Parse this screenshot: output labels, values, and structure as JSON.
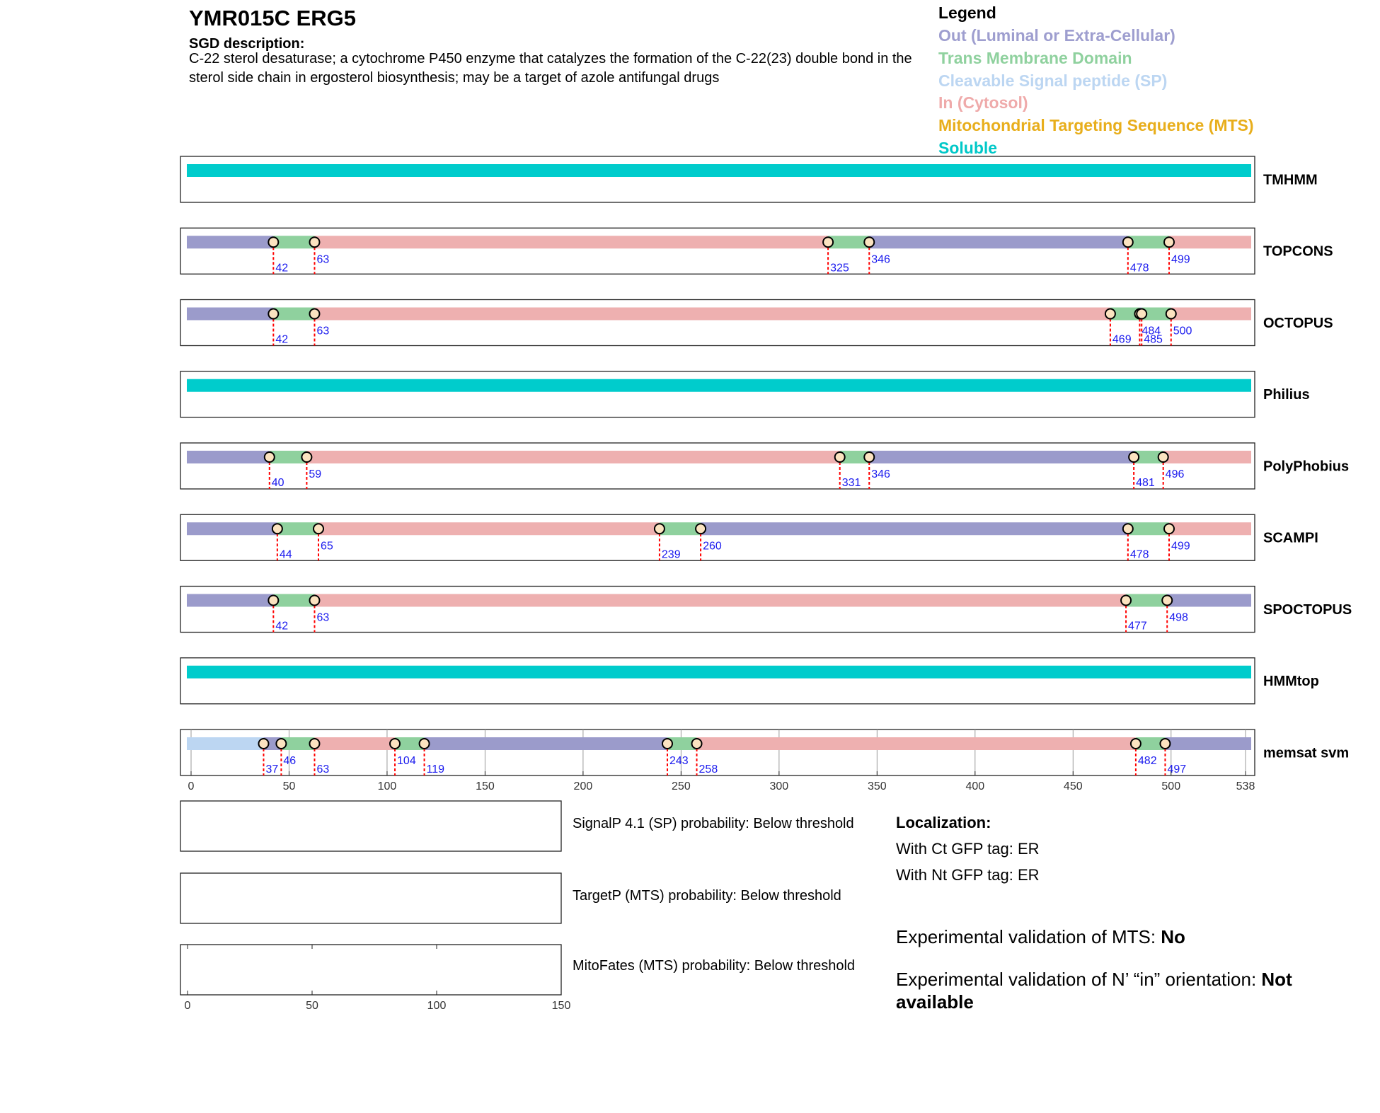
{
  "header": {
    "title": "YMR015C  ERG5",
    "description_label": "SGD description:",
    "description": "C-22 sterol desaturase; a cytochrome P450 enzyme that catalyzes the formation of the C-22(23) double bond in the sterol side chain in ergosterol biosynthesis; may be a target of azole antifungal drugs"
  },
  "legend": {
    "title": "Legend",
    "items": [
      {
        "label": "Out (Luminal or Extra-Cellular)",
        "color": "#9e9ecf"
      },
      {
        "label": "Trans Membrane Domain",
        "color": "#8fd19e"
      },
      {
        "label": "Cleavable Signal peptide (SP)",
        "color": "#bcd6f2"
      },
      {
        "label": "In (Cytosol)",
        "color": "#efaaaa"
      },
      {
        "label": "Mitochondrial Targeting Sequence (MTS)",
        "color": "#e8ae1c"
      },
      {
        "label": "Soluble",
        "color": "#00c8c8"
      }
    ]
  },
  "chart_data": {
    "type": "topology",
    "xlim": [
      0,
      538
    ],
    "xticks": [
      0,
      50,
      100,
      150,
      200,
      250,
      300,
      350,
      400,
      450,
      500,
      538
    ],
    "tracks": [
      {
        "name": "TMHMM",
        "boundaries": [],
        "colors": [
          "#00cccc"
        ]
      },
      {
        "name": "TOPCONS",
        "boundaries": [
          42,
          63,
          325,
          346,
          478,
          499
        ],
        "colors": [
          "#9b9bcb",
          "#8fd19e",
          "#eeb0b0",
          "#8fd19e",
          "#9b9bcb",
          "#8fd19e",
          "#eeb0b0"
        ]
      },
      {
        "name": "OCTOPUS",
        "boundaries": [
          42,
          63,
          469,
          484,
          485,
          500
        ],
        "colors": [
          "#9b9bcb",
          "#8fd19e",
          "#eeb0b0",
          "#8fd19e",
          "#9b9bcb",
          "#8fd19e",
          "#eeb0b0"
        ]
      },
      {
        "name": "Philius",
        "boundaries": [],
        "colors": [
          "#00cccc"
        ]
      },
      {
        "name": "PolyPhobius",
        "boundaries": [
          40,
          59,
          331,
          346,
          481,
          496
        ],
        "colors": [
          "#9b9bcb",
          "#8fd19e",
          "#eeb0b0",
          "#8fd19e",
          "#9b9bcb",
          "#8fd19e",
          "#eeb0b0"
        ]
      },
      {
        "name": "SCAMPI",
        "boundaries": [
          44,
          65,
          239,
          260,
          478,
          499
        ],
        "colors": [
          "#9b9bcb",
          "#8fd19e",
          "#eeb0b0",
          "#8fd19e",
          "#9b9bcb",
          "#8fd19e",
          "#eeb0b0"
        ]
      },
      {
        "name": "SPOCTOPUS",
        "boundaries": [
          42,
          63,
          477,
          498
        ],
        "colors": [
          "#9b9bcb",
          "#8fd19e",
          "#eeb0b0",
          "#8fd19e",
          "#9b9bcb"
        ]
      },
      {
        "name": "HMMtop",
        "boundaries": [],
        "colors": [
          "#00cccc"
        ]
      },
      {
        "name": "memsat svm",
        "grid": true,
        "boundaries": [
          37,
          46,
          63,
          104,
          119,
          243,
          258,
          482,
          497
        ],
        "colors": [
          "#bcd6f2",
          "#9b9bcb",
          "#8fd19e",
          "#eeb0b0",
          "#8fd19e",
          "#9b9bcb",
          "#8fd19e",
          "#eeb0b0",
          "#8fd19e",
          "#9b9bcb"
        ]
      }
    ]
  },
  "panels": {
    "items": [
      {
        "label": "SignalP 4.1 (SP) probability: Below threshold"
      },
      {
        "label": "TargetP (MTS) probability: Below threshold"
      },
      {
        "label": "MitoFates (MTS) probability: Below threshold"
      }
    ],
    "xlim": [
      0,
      150
    ],
    "xticks": [
      0,
      50,
      100,
      150
    ]
  },
  "localization": {
    "title": "Localization:",
    "items": [
      "With Ct GFP tag: ER",
      "With Nt GFP tag: ER"
    ],
    "mts_validation": {
      "label": "Experimental validation of MTS: ",
      "value": "No"
    },
    "orientation_validation": {
      "label": "Experimental validation of N’ “in” orientation: ",
      "value": "Not available"
    }
  }
}
